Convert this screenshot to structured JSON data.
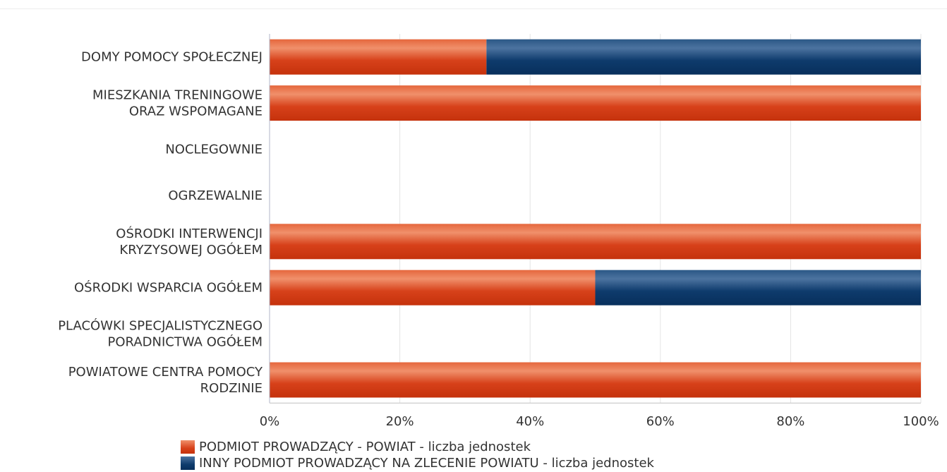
{
  "chart_data": {
    "type": "bar",
    "orientation": "horizontal",
    "stacked": "percent",
    "categories": [
      [
        "DOMY POMOCY SPOŁECZNEJ"
      ],
      [
        "MIESZKANIA TRENINGOWE",
        "ORAZ WSPOMAGANE"
      ],
      [
        "NOCLEGOWNIE"
      ],
      [
        "OGRZEWALNIE"
      ],
      [
        "OŚRODKI INTERWENCJI",
        "KRYZYSOWEJ OGÓŁEM"
      ],
      [
        "OŚRODKI WSPARCIA OGÓŁEM"
      ],
      [
        "PLACÓWKI SPECJALISTYCZNEGO",
        "PORADNICTWA OGÓŁEM"
      ],
      [
        "POWIATOWE CENTRA POMOCY",
        "RODZINIE"
      ]
    ],
    "series": [
      {
        "name": "PODMIOT PROWADZĄCY - POWIAT - liczba jednostek",
        "color": "#d9401a",
        "values": [
          33.3,
          100,
          0,
          0,
          100,
          50,
          0,
          100
        ]
      },
      {
        "name": "INNY PODMIOT PROWADZĄCY NA ZLECENIE POWIATU - liczba jednostek",
        "color": "#0d3a6b",
        "values": [
          66.7,
          0,
          0,
          0,
          0,
          50,
          0,
          0
        ]
      }
    ],
    "xticks": [
      "0%",
      "20%",
      "40%",
      "60%",
      "80%",
      "100%"
    ],
    "xlim": [
      0,
      100
    ],
    "grid": true,
    "legend_position": "bottom"
  }
}
